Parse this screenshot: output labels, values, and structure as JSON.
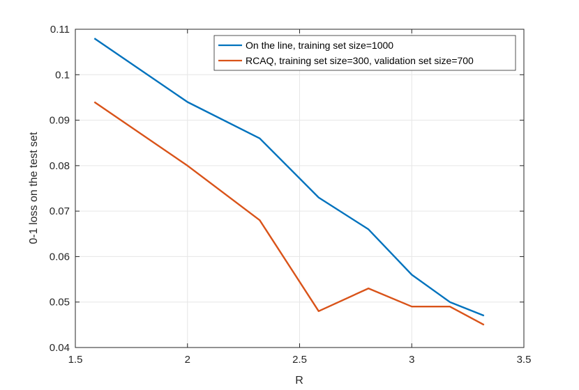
{
  "chart_data": {
    "type": "line",
    "xlabel": "R",
    "ylabel": "0-1 loss on the test set",
    "xlim": [
      1.5,
      3.5
    ],
    "ylim": [
      0.04,
      0.11
    ],
    "xticks": [
      1.5,
      2,
      2.5,
      3,
      3.5
    ],
    "xtick_labels": [
      "1.5",
      "2",
      "2.5",
      "3",
      "3.5"
    ],
    "yticks": [
      0.04,
      0.05,
      0.06,
      0.07,
      0.08,
      0.09,
      0.1,
      0.11
    ],
    "ytick_labels": [
      "0.04",
      "0.05",
      "0.06",
      "0.07",
      "0.08",
      "0.09",
      "0.1",
      "0.11"
    ],
    "grid": true,
    "legend_position": "top-right",
    "series": [
      {
        "name": "On the line, training set size=1000",
        "color": "#0072BD",
        "x": [
          1.585,
          2.0,
          2.322,
          2.585,
          2.807,
          3.0,
          3.17,
          3.322
        ],
        "y": [
          0.108,
          0.094,
          0.086,
          0.073,
          0.066,
          0.056,
          0.05,
          0.047
        ]
      },
      {
        "name": "RCAQ, training set size=300, validation set size=700",
        "color": "#D95319",
        "x": [
          1.585,
          2.0,
          2.322,
          2.585,
          2.807,
          3.0,
          3.17,
          3.322
        ],
        "y": [
          0.094,
          0.08,
          0.068,
          0.048,
          0.053,
          0.049,
          0.049,
          0.045
        ]
      }
    ]
  }
}
